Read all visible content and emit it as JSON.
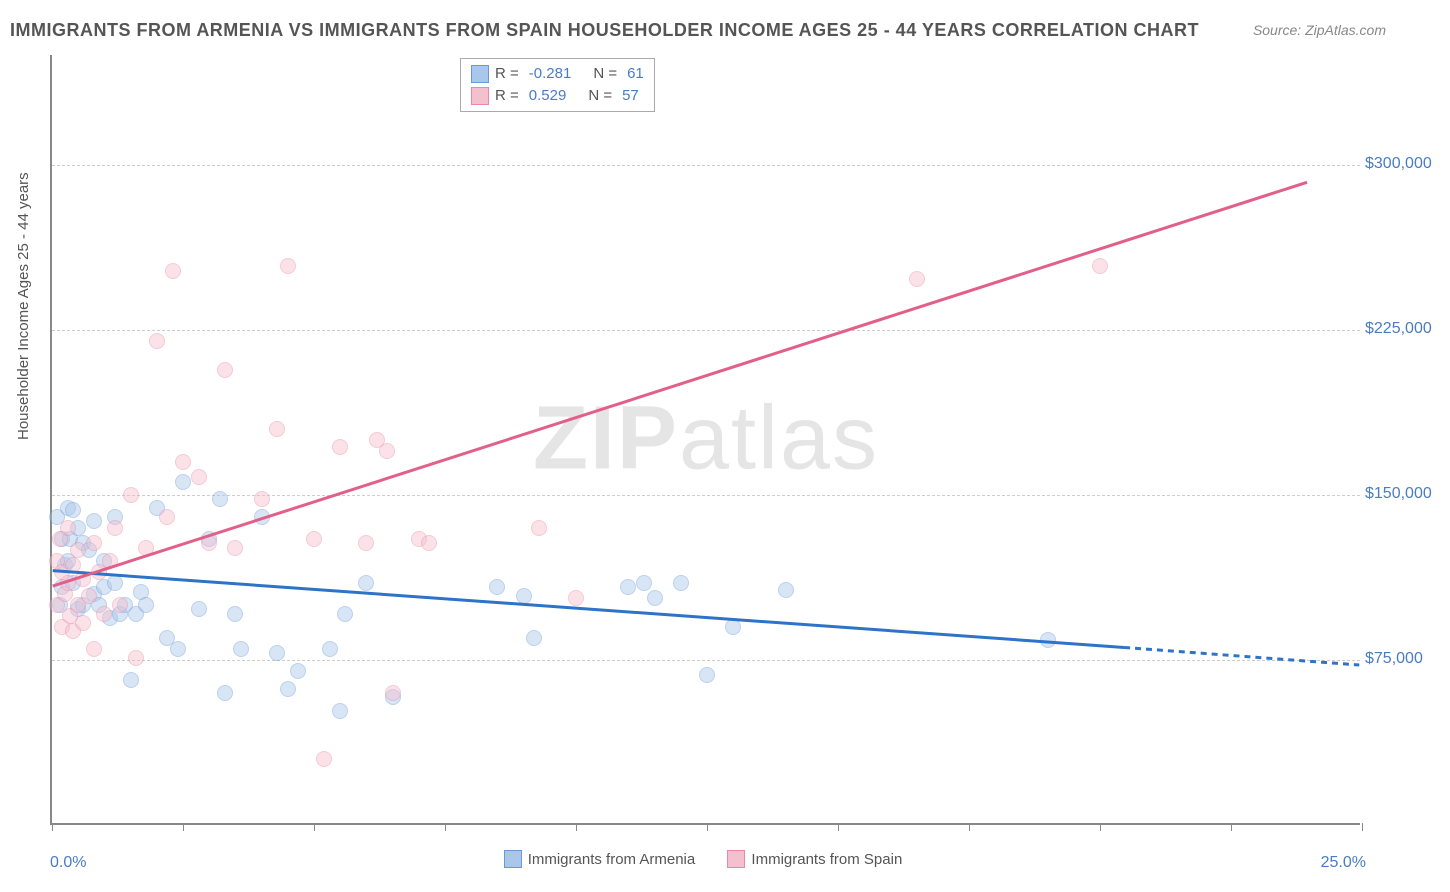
{
  "title": "IMMIGRANTS FROM ARMENIA VS IMMIGRANTS FROM SPAIN HOUSEHOLDER INCOME AGES 25 - 44 YEARS CORRELATION CHART",
  "source_label": "Source:",
  "source_name": "ZipAtlas.com",
  "y_axis_title": "Householder Income Ages 25 - 44 years",
  "watermark_part1": "ZIP",
  "watermark_part2": "atlas",
  "chart": {
    "type": "scatter",
    "xlim": [
      0,
      25
    ],
    "ylim": [
      0,
      350000
    ],
    "x_tick_positions": [
      0,
      2.5,
      5,
      7.5,
      10,
      12.5,
      15,
      17.5,
      20,
      22.5,
      25
    ],
    "x_tick_labels_shown": {
      "start": "0.0%",
      "end": "25.0%"
    },
    "y_gridlines": [
      75000,
      150000,
      225000,
      300000
    ],
    "y_tick_labels": [
      "$75,000",
      "$150,000",
      "$225,000",
      "$300,000"
    ],
    "background_color": "#ffffff",
    "grid_color": "#cccccc",
    "axis_color": "#888888",
    "label_color": "#4a7cc4",
    "marker_radius": 8,
    "marker_opacity": 0.45,
    "series": [
      {
        "name": "Immigrants from Armenia",
        "color_fill": "#a9c7ea",
        "color_stroke": "#6a9ad6",
        "line_color": "#2d73c8",
        "r_value": "-0.281",
        "n_value": "61",
        "trend_line": {
          "x1": 0,
          "y1": 115000,
          "x2": 20.5,
          "y2": 80000
        },
        "trend_ext": {
          "x1": 20.5,
          "y1": 80000,
          "x2": 25,
          "y2": 72000,
          "dash": true
        },
        "points": [
          [
            0.1,
            140000
          ],
          [
            0.15,
            100000
          ],
          [
            0.2,
            130000
          ],
          [
            0.2,
            108000
          ],
          [
            0.25,
            118000
          ],
          [
            0.3,
            144000
          ],
          [
            0.3,
            120000
          ],
          [
            0.35,
            130000
          ],
          [
            0.4,
            143000
          ],
          [
            0.4,
            110000
          ],
          [
            0.5,
            135000
          ],
          [
            0.5,
            98000
          ],
          [
            0.6,
            128000
          ],
          [
            0.6,
            100000
          ],
          [
            0.7,
            125000
          ],
          [
            0.8,
            138000
          ],
          [
            0.8,
            105000
          ],
          [
            0.9,
            100000
          ],
          [
            1.0,
            120000
          ],
          [
            1.0,
            108000
          ],
          [
            1.1,
            94000
          ],
          [
            1.2,
            140000
          ],
          [
            1.2,
            110000
          ],
          [
            1.3,
            96000
          ],
          [
            1.4,
            100000
          ],
          [
            1.5,
            66000
          ],
          [
            1.6,
            96000
          ],
          [
            1.7,
            106000
          ],
          [
            1.8,
            100000
          ],
          [
            2.0,
            144000
          ],
          [
            2.2,
            85000
          ],
          [
            2.4,
            80000
          ],
          [
            2.5,
            156000
          ],
          [
            2.8,
            98000
          ],
          [
            3.0,
            130000
          ],
          [
            3.2,
            148000
          ],
          [
            3.3,
            60000
          ],
          [
            3.5,
            96000
          ],
          [
            3.6,
            80000
          ],
          [
            4.0,
            140000
          ],
          [
            4.3,
            78000
          ],
          [
            4.5,
            62000
          ],
          [
            4.7,
            70000
          ],
          [
            5.3,
            80000
          ],
          [
            5.5,
            52000
          ],
          [
            5.6,
            96000
          ],
          [
            6.0,
            110000
          ],
          [
            6.5,
            58000
          ],
          [
            8.5,
            108000
          ],
          [
            9.0,
            104000
          ],
          [
            9.2,
            85000
          ],
          [
            11.0,
            108000
          ],
          [
            11.3,
            110000
          ],
          [
            11.5,
            103000
          ],
          [
            12.0,
            110000
          ],
          [
            12.5,
            68000
          ],
          [
            13.0,
            90000
          ],
          [
            14.0,
            107000
          ],
          [
            19.0,
            84000
          ]
        ]
      },
      {
        "name": "Immigrants from Spain",
        "color_fill": "#f4c0ce",
        "color_stroke": "#e88aa6",
        "line_color": "#e26088",
        "r_value": "0.529",
        "n_value": "57",
        "trend_line": {
          "x1": 0,
          "y1": 108000,
          "x2": 24,
          "y2": 292000
        },
        "points": [
          [
            0.1,
            120000
          ],
          [
            0.1,
            100000
          ],
          [
            0.15,
            130000
          ],
          [
            0.2,
            115000
          ],
          [
            0.2,
            90000
          ],
          [
            0.25,
            105000
          ],
          [
            0.3,
            135000
          ],
          [
            0.3,
            110000
          ],
          [
            0.35,
            95000
          ],
          [
            0.4,
            118000
          ],
          [
            0.4,
            88000
          ],
          [
            0.5,
            100000
          ],
          [
            0.5,
            125000
          ],
          [
            0.6,
            112000
          ],
          [
            0.6,
            92000
          ],
          [
            0.7,
            104000
          ],
          [
            0.8,
            128000
          ],
          [
            0.8,
            80000
          ],
          [
            0.9,
            115000
          ],
          [
            1.0,
            96000
          ],
          [
            1.1,
            120000
          ],
          [
            1.2,
            135000
          ],
          [
            1.3,
            100000
          ],
          [
            1.5,
            150000
          ],
          [
            1.6,
            76000
          ],
          [
            1.8,
            126000
          ],
          [
            2.0,
            220000
          ],
          [
            2.2,
            140000
          ],
          [
            2.3,
            252000
          ],
          [
            2.5,
            165000
          ],
          [
            2.8,
            158000
          ],
          [
            3.0,
            128000
          ],
          [
            3.3,
            207000
          ],
          [
            3.5,
            126000
          ],
          [
            4.0,
            148000
          ],
          [
            4.3,
            180000
          ],
          [
            4.5,
            254000
          ],
          [
            5.0,
            130000
          ],
          [
            5.2,
            30000
          ],
          [
            5.5,
            172000
          ],
          [
            6.0,
            128000
          ],
          [
            6.2,
            175000
          ],
          [
            6.4,
            170000
          ],
          [
            6.5,
            60000
          ],
          [
            7.0,
            130000
          ],
          [
            7.2,
            128000
          ],
          [
            9.3,
            135000
          ],
          [
            10.0,
            103000
          ],
          [
            16.5,
            248000
          ],
          [
            20.0,
            254000
          ]
        ]
      }
    ]
  },
  "legend_top": {
    "r_label": "R =",
    "n_label": "N ="
  },
  "legend_bottom": {
    "items": [
      "Immigrants from Armenia",
      "Immigrants from Spain"
    ]
  }
}
